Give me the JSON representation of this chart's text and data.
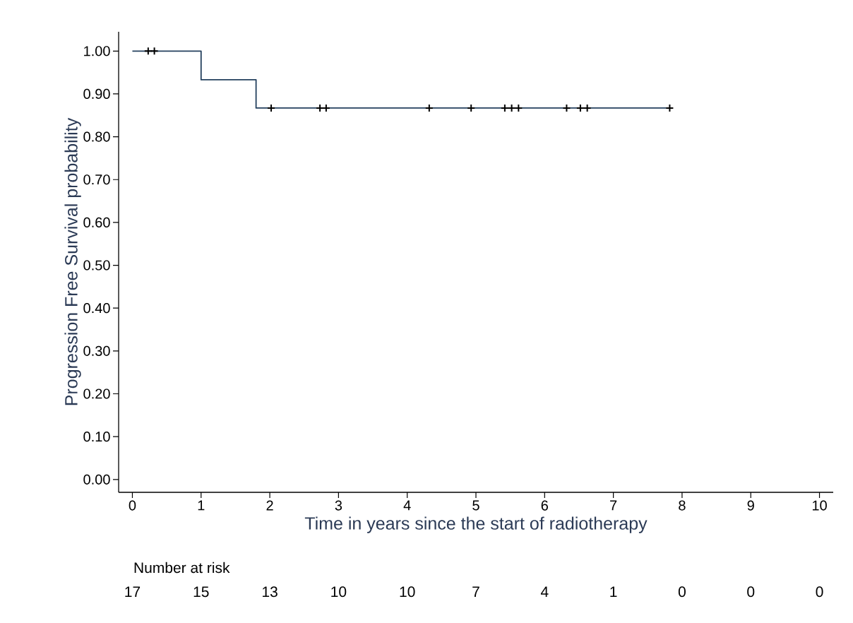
{
  "chart_data": {
    "type": "step",
    "xlabel": "Time in years since the start of radiotherapy",
    "ylabel": "Progression Free Survival probability",
    "series": [
      {
        "color": "#24405e",
        "x": [
          0,
          1.0,
          1.8,
          7.82
        ],
        "values": [
          1.0,
          0.933,
          0.867,
          0.867
        ]
      },
      {
        "type": "scatter",
        "marker": "cross",
        "color": "#000000",
        "x": [
          0.23,
          0.32,
          2.02,
          2.73,
          2.82,
          4.32,
          4.93,
          5.42,
          5.52,
          5.62,
          6.32,
          6.52,
          6.62,
          7.82
        ],
        "values": [
          1.0,
          1.0,
          0.867,
          0.867,
          0.867,
          0.867,
          0.867,
          0.867,
          0.867,
          0.867,
          0.867,
          0.867,
          0.867,
          0.867
        ]
      }
    ],
    "xlim": [
      -0.2,
      10.2
    ],
    "ylim": [
      -0.03,
      1.045
    ],
    "xticks": [
      0,
      1,
      2,
      3,
      4,
      5,
      6,
      7,
      8,
      9,
      10
    ],
    "yticks": [
      {
        "value": 0,
        "label": "0.00"
      },
      {
        "value": 0.1,
        "label": "0.10"
      },
      {
        "value": 0.2,
        "label": "0.20"
      },
      {
        "value": 0.3,
        "label": "0.30"
      },
      {
        "value": 0.4,
        "label": "0.40"
      },
      {
        "value": 0.5,
        "label": "0.50"
      },
      {
        "value": 0.6,
        "label": "0.60"
      },
      {
        "value": 0.7,
        "label": "0.70"
      },
      {
        "value": 0.8,
        "label": "0.80"
      },
      {
        "value": 0.9,
        "label": "0.90"
      },
      {
        "value": 1.0,
        "label": "1.00"
      }
    ],
    "annotations": [
      "Number at risk",
      "17",
      "15",
      "13",
      "10",
      "10",
      "7",
      "4",
      "1",
      "0",
      "0",
      "0"
    ]
  }
}
